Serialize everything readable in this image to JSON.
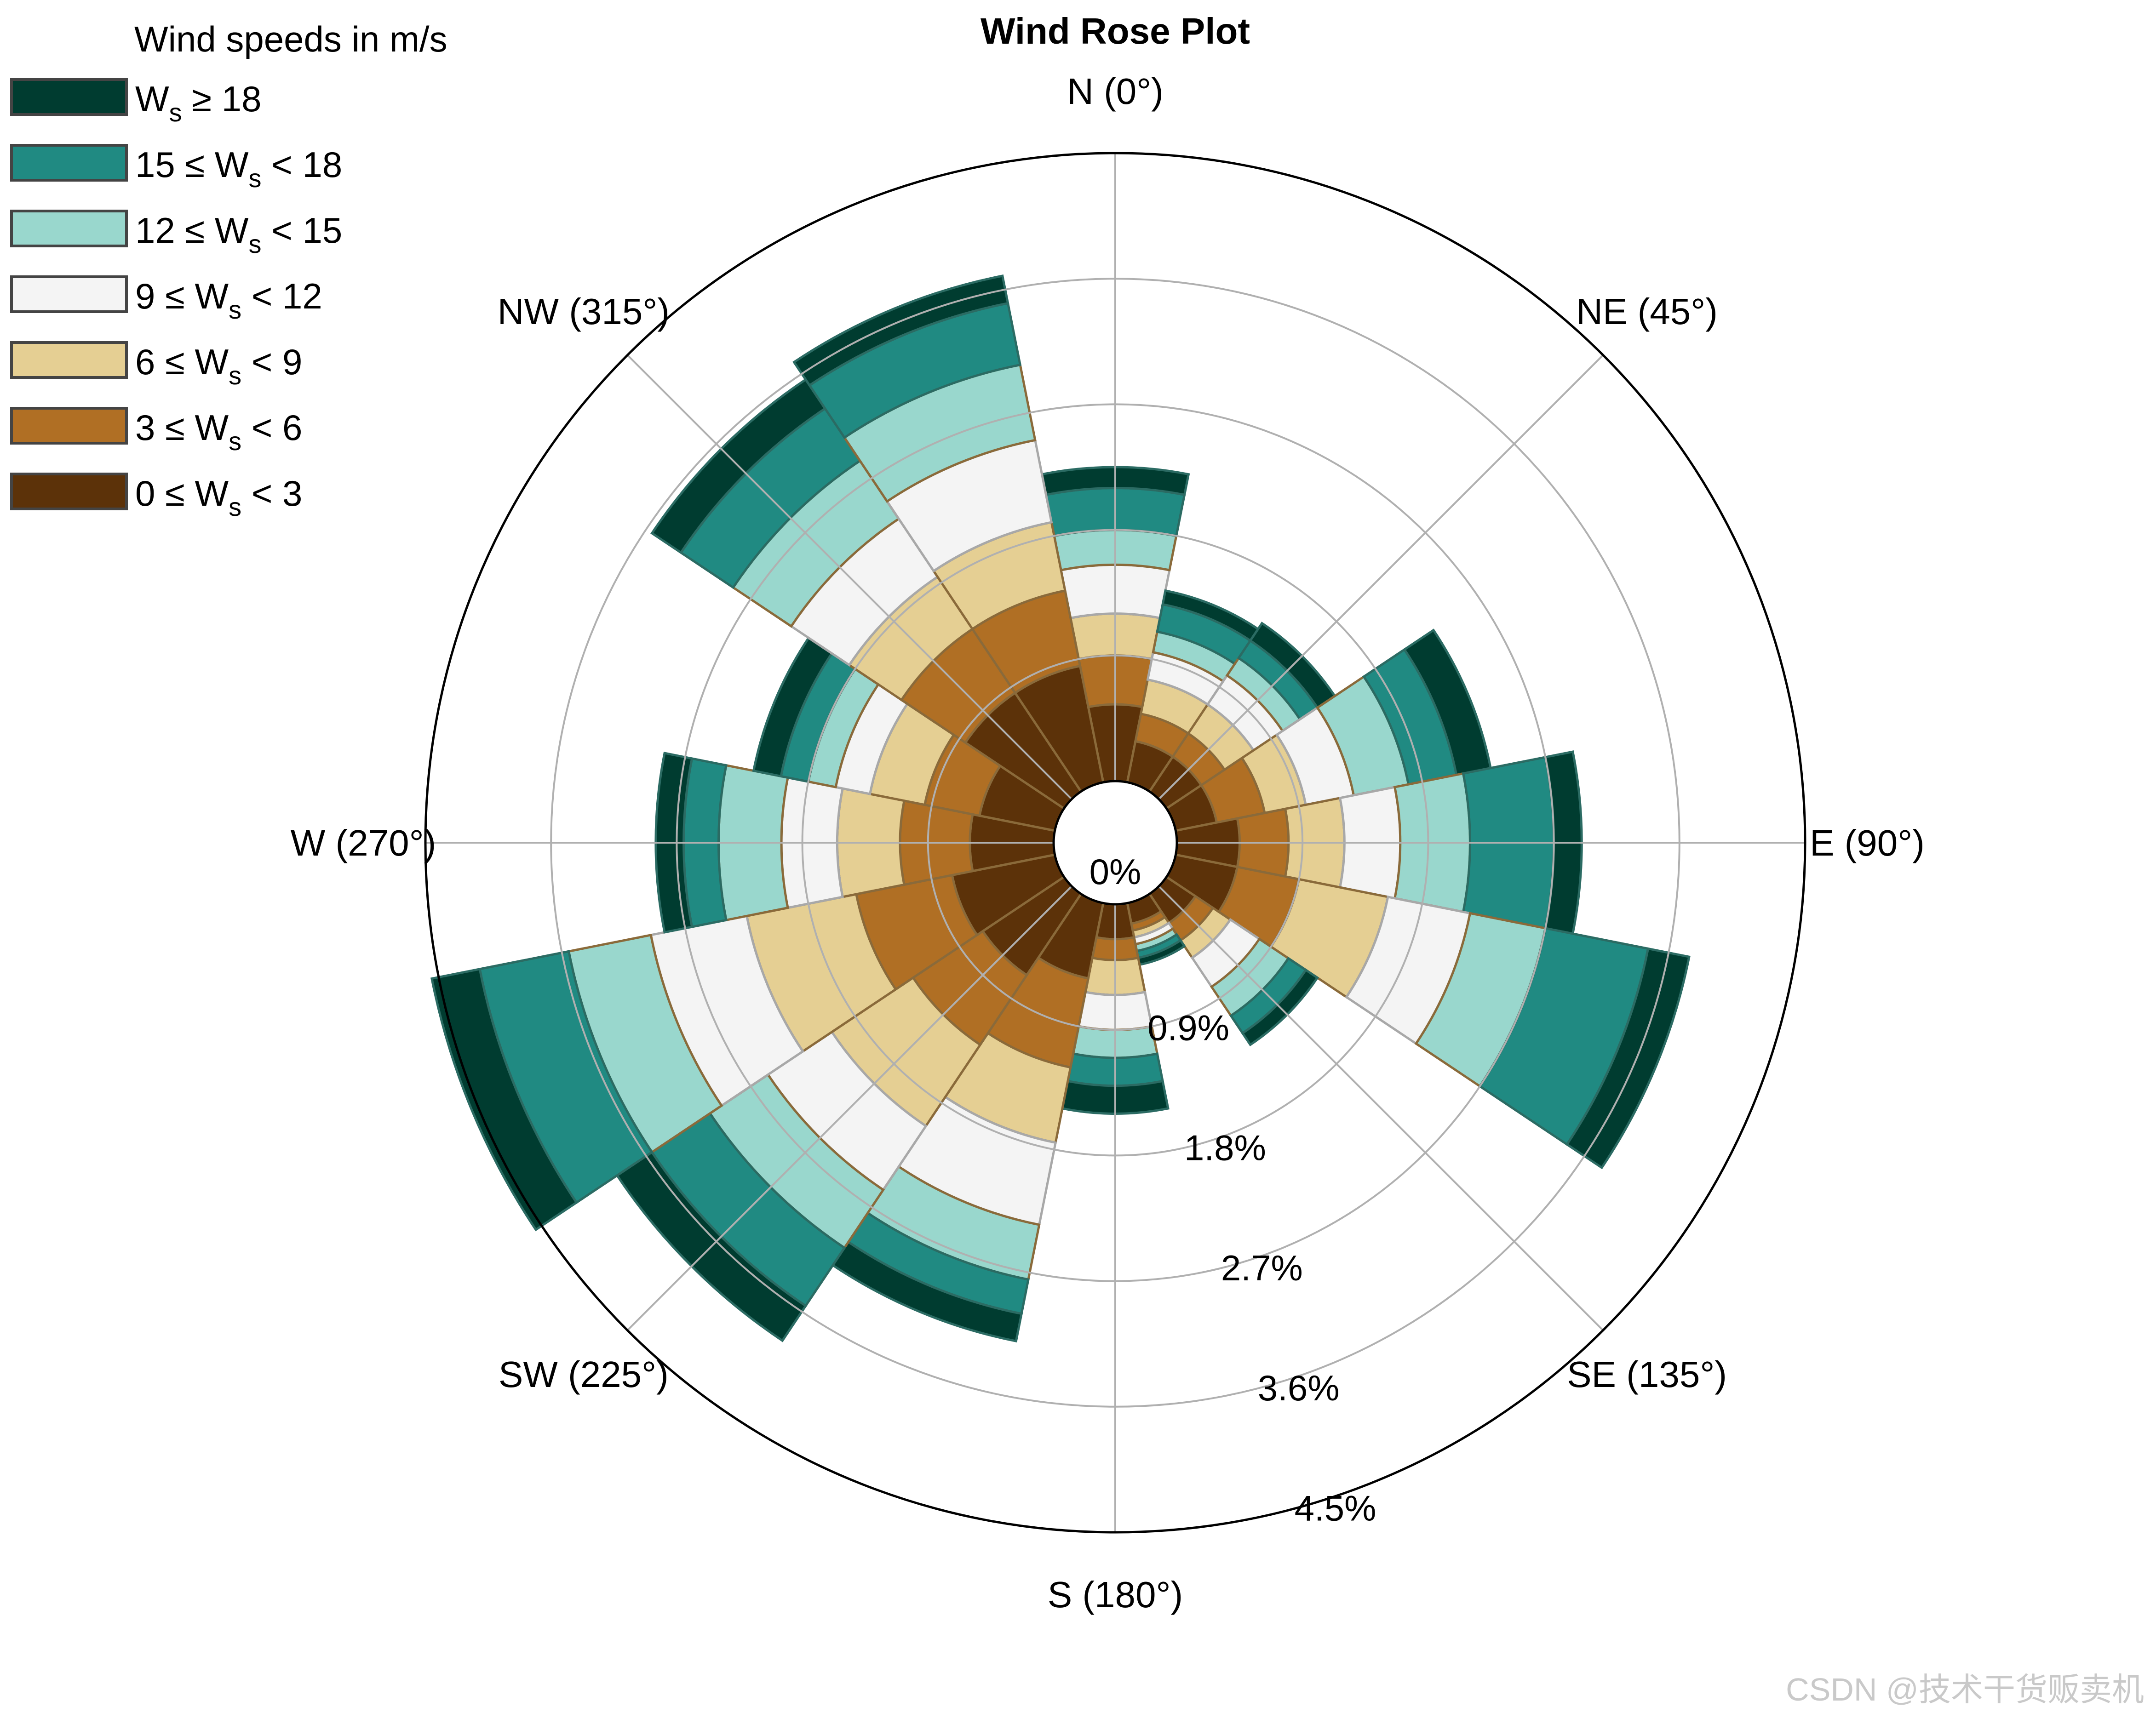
{
  "watermark": "CSDN @技术干货贩卖机",
  "chart_data": {
    "type": "windrose",
    "title": "Wind Rose Plot",
    "legend_title": "Wind speeds in m/s",
    "legend_placement": "top-left",
    "grid": true,
    "r_unit": "%",
    "r_ticks": [
      0,
      0.9,
      1.8,
      2.7,
      3.6,
      4.5
    ],
    "r_tick_labels": [
      "0%",
      "0.9%",
      "1.8%",
      "2.7%",
      "3.6%",
      "4.5%"
    ],
    "rlim": [
      0,
      4.5
    ],
    "theta_labels": [
      {
        "deg": 0,
        "text": "N (0°)"
      },
      {
        "deg": 45,
        "text": "NE (45°)"
      },
      {
        "deg": 90,
        "text": "E (90°)"
      },
      {
        "deg": 135,
        "text": "SE (135°)"
      },
      {
        "deg": 180,
        "text": "S (180°)"
      },
      {
        "deg": 225,
        "text": "SW (225°)"
      },
      {
        "deg": 270,
        "text": "W (270°)"
      },
      {
        "deg": 315,
        "text": "NW (315°)"
      }
    ],
    "bins": [
      {
        "prefix": "",
        "main": "W",
        "sub": "s",
        "rest": " ≥ 18",
        "color": "#003c30"
      },
      {
        "prefix": "15 ≤ ",
        "main": "W",
        "sub": "s",
        "rest": " < 18",
        "color": "#208a82"
      },
      {
        "prefix": "12 ≤ ",
        "main": "W",
        "sub": "s",
        "rest": " < 15",
        "color": "#99d7cd"
      },
      {
        "prefix": "9 ≤ ",
        "main": "W",
        "sub": "s",
        "rest": " < 12",
        "color": "#f4f4f4"
      },
      {
        "prefix": "6 ≤ ",
        "main": "W",
        "sub": "s",
        "rest": " < 9",
        "color": "#e5cf93"
      },
      {
        "prefix": "3 ≤ ",
        "main": "W",
        "sub": "s",
        "rest": " < 6",
        "color": "#b06f24"
      },
      {
        "prefix": "0 ≤ ",
        "main": "W",
        "sub": "s",
        "rest": " < 3",
        "color": "#5c3209"
      }
    ],
    "sector_width_deg": 22.5,
    "directions_deg": [
      0,
      22.5,
      45,
      67.5,
      90,
      112.5,
      135,
      157.5,
      180,
      202.5,
      225,
      247.5,
      270,
      292.5,
      315,
      337.5
    ],
    "cumulative_by_bin_order": "0-3, 3-6, 6-9, 9-12, 12-15, 15-18, >=18",
    "sectors": [
      {
        "dir": 0,
        "cumulative": [
          0.55,
          0.9,
          1.2,
          1.55,
          1.8,
          2.1,
          2.25
        ]
      },
      {
        "dir": 22.5,
        "cumulative": [
          0.3,
          0.5,
          0.75,
          0.95,
          1.1,
          1.3,
          1.4
        ]
      },
      {
        "dir": 45,
        "cumulative": [
          0.3,
          0.5,
          0.75,
          1.0,
          1.15,
          1.3,
          1.45
        ]
      },
      {
        "dir": 67.5,
        "cumulative": [
          0.3,
          0.65,
          0.95,
          1.3,
          1.7,
          2.05,
          2.3
        ]
      },
      {
        "dir": 90,
        "cumulative": [
          0.45,
          0.8,
          1.2,
          1.6,
          2.1,
          2.7,
          2.9
        ]
      },
      {
        "dir": 112.5,
        "cumulative": [
          0.45,
          0.9,
          1.55,
          2.15,
          2.7,
          3.45,
          3.75
        ]
      },
      {
        "dir": 135,
        "cumulative": [
          0.25,
          0.4,
          0.55,
          0.8,
          1.05,
          1.2,
          1.3
        ]
      },
      {
        "dir": 157.5,
        "cumulative": [
          0.15,
          0.2,
          0.25,
          0.3,
          0.35,
          0.4,
          0.45
        ]
      },
      {
        "dir": 180,
        "cumulative": [
          0.25,
          0.4,
          0.65,
          0.9,
          1.1,
          1.3,
          1.5
        ]
      },
      {
        "dir": 202.5,
        "cumulative": [
          0.55,
          1.2,
          1.75,
          2.35,
          2.75,
          3.0,
          3.2
        ]
      },
      {
        "dir": 225,
        "cumulative": [
          0.7,
          1.3,
          2.0,
          2.55,
          3.05,
          3.55,
          3.85
        ]
      },
      {
        "dir": 247.5,
        "cumulative": [
          0.75,
          1.45,
          2.25,
          2.95,
          3.55,
          4.2,
          4.55
        ]
      },
      {
        "dir": 270,
        "cumulative": [
          0.6,
          1.1,
          1.55,
          1.95,
          2.4,
          2.65,
          2.85
        ]
      },
      {
        "dir": 292.5,
        "cumulative": [
          0.55,
          0.95,
          1.35,
          1.6,
          1.8,
          2.0,
          2.2
        ]
      },
      {
        "dir": 315,
        "cumulative": [
          0.85,
          1.4,
          1.85,
          2.35,
          2.85,
          3.3,
          3.55
        ]
      },
      {
        "dir": 337.5,
        "cumulative": [
          0.85,
          1.4,
          1.9,
          2.5,
          3.05,
          3.5,
          3.7
        ]
      }
    ]
  }
}
